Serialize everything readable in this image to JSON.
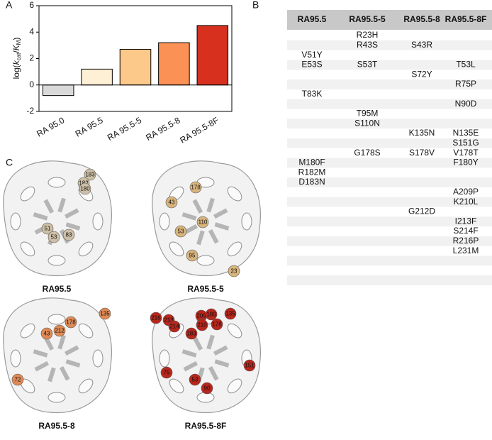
{
  "panel_labels": [
    "A",
    "B",
    "C"
  ],
  "chart_data": {
    "type": "bar",
    "ylabel_parts": [
      "log(",
      "k",
      "cat",
      "/",
      "K",
      "M",
      ")"
    ],
    "categories": [
      "RA 95.0",
      "RA 95.5",
      "RA 95.5-5",
      "RA 95.5-8",
      "RA 95.5-8F"
    ],
    "values": [
      -0.8,
      1.2,
      2.7,
      3.2,
      4.5
    ],
    "colors": [
      "#d9d9d9",
      "#fdf0d5",
      "#fdc98a",
      "#fc9155",
      "#d7301f"
    ],
    "ylim": [
      -2,
      6
    ],
    "yticks": [
      -2,
      0,
      2,
      4,
      6
    ]
  },
  "table": {
    "header": [
      "RA95.5",
      "RA95.5-5",
      "RA95.5-8",
      "RA95.5-8F"
    ],
    "rows": [
      [
        null,
        "R23H",
        null,
        null
      ],
      [
        null,
        "R43S",
        "S43R",
        null
      ],
      [
        "V51Y",
        null,
        null,
        null
      ],
      [
        "E53S",
        "S53T",
        null,
        "T53L"
      ],
      [
        null,
        null,
        "S72Y",
        null
      ],
      [
        null,
        null,
        null,
        "R75P"
      ],
      [
        "T83K",
        null,
        null,
        null
      ],
      [
        null,
        null,
        null,
        "N90D"
      ],
      [
        null,
        "T95M",
        null,
        null
      ],
      [
        null,
        "S110N",
        null,
        null
      ],
      [
        null,
        null,
        "K135N",
        "N135E"
      ],
      [
        null,
        null,
        null,
        "S151G"
      ],
      [
        null,
        "G178S",
        "S178V",
        "V178T"
      ],
      [
        "M180F",
        null,
        null,
        "F180Y"
      ],
      [
        "R182M",
        null,
        null,
        null
      ],
      [
        "D183N",
        null,
        null,
        null
      ],
      [
        null,
        null,
        null,
        "A209P"
      ],
      [
        null,
        null,
        null,
        "K210L"
      ],
      [
        null,
        null,
        "G212D",
        null
      ],
      [
        null,
        null,
        null,
        "I213F"
      ],
      [
        null,
        null,
        null,
        "S214F"
      ],
      [
        null,
        null,
        null,
        "R216P"
      ],
      [
        null,
        null,
        null,
        "L231M"
      ]
    ]
  },
  "structures": [
    {
      "name": "RA95.5",
      "color": "#cdbfa6",
      "residues": [
        "183",
        "182",
        "180",
        "51",
        "53",
        "83"
      ]
    },
    {
      "name": "RA95.5-5",
      "color": "#d8b47c",
      "residues": [
        "178",
        "43",
        "110",
        "53",
        "95",
        "23"
      ]
    },
    {
      "name": "RA95.5-8",
      "color": "#df8a55",
      "residues": [
        "135",
        "178",
        "212",
        "43",
        "72"
      ]
    },
    {
      "name": "RA95.5-8F",
      "color": "#b8261c",
      "residues": [
        "216",
        "213",
        "214",
        "209",
        "180",
        "210",
        "178",
        "183",
        "135",
        "151",
        "75",
        "53",
        "90"
      ]
    }
  ]
}
